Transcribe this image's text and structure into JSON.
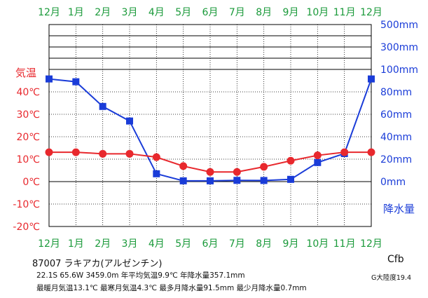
{
  "chart_data": {
    "type": "line",
    "categories": [
      "12月",
      "1月",
      "2月",
      "3月",
      "4月",
      "5月",
      "6月",
      "7月",
      "8月",
      "9月",
      "10月",
      "11月",
      "12月"
    ],
    "temperature_axis": {
      "title": "気温",
      "ticks": [
        "40℃",
        "30℃",
        "20℃",
        "10℃",
        "0℃",
        "-10℃",
        "-20℃"
      ],
      "tick_values": [
        40,
        30,
        20,
        10,
        0,
        -10,
        -20
      ],
      "range": [
        -20,
        40
      ]
    },
    "precip_axis": {
      "title": "降水量",
      "ticks": [
        "500mm",
        "300mm",
        "100mm",
        "80mm",
        "60mm",
        "40mm",
        "20mm",
        "0mm"
      ],
      "tick_values": [
        500,
        300,
        100,
        80,
        60,
        40,
        20,
        0
      ]
    },
    "series": [
      {
        "values": [
          13.1,
          13.1,
          12.4,
          12.4,
          10.9,
          6.9,
          4.3,
          4.3,
          6.6,
          9.3,
          11.7,
          13.1,
          13.1
        ],
        "color": "#e8282d"
      },
      {
        "values": [
          91.5,
          89.0,
          67.0,
          54.0,
          7.0,
          0.7,
          0.7,
          1.1,
          1.0,
          2.0,
          17.0,
          25.0,
          91.5
        ],
        "color": "#1a3cd8"
      }
    ],
    "grid": true
  },
  "info": {
    "station": "87007 ラキアカ(アルゼンチン)",
    "location": "22.1S 65.6W 3459.0m 年平均気温9.9℃ 年降水量357.1mm",
    "summary": "最暖月気温13.1℃ 最寒月気温4.3℃ 最多月降水量91.5mm 最少月降水量0.7mm",
    "climate_code": "Cfb",
    "continentality": "G大陸度19.4"
  }
}
